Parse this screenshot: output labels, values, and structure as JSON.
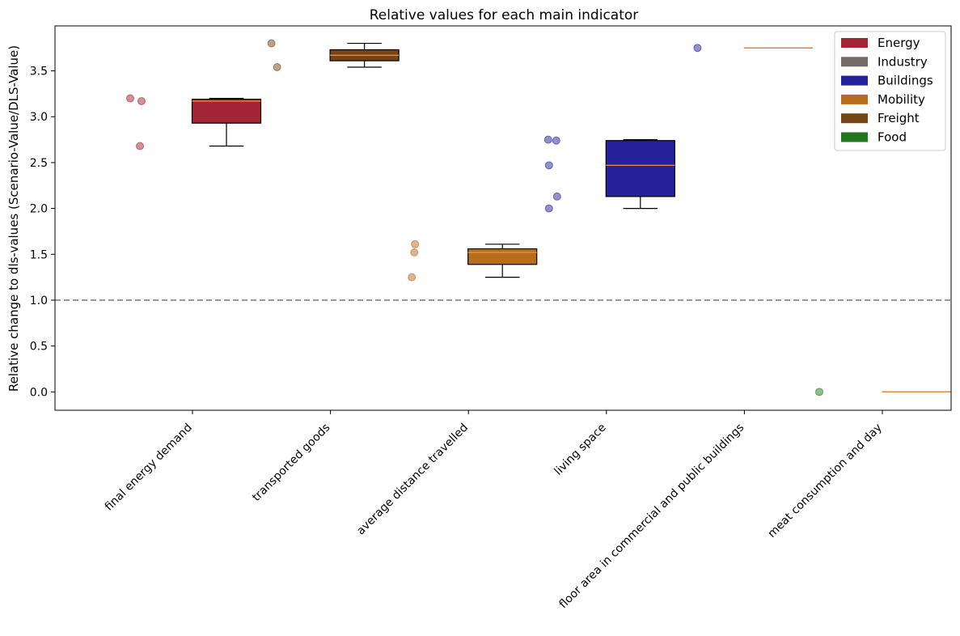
{
  "chart_data": {
    "type": "box",
    "title": "Relative values for each main indicator",
    "ylabel": "Relative change to dls-values (Scenario-Value/DLS-Value)",
    "xlabel": "",
    "ylim": [
      -0.2,
      3.99
    ],
    "yticks": [
      "0.0",
      "0.5",
      "1.0",
      "1.5",
      "2.0",
      "2.5",
      "3.0",
      "3.5"
    ],
    "reference_line": 1.0,
    "legend_position": "top-right",
    "grid": false,
    "legend": [
      {
        "label": "Energy",
        "color": "#a32435"
      },
      {
        "label": "Industry",
        "color": "#756968"
      },
      {
        "label": "Buildings",
        "color": "#27229c"
      },
      {
        "label": "Mobility",
        "color": "#b66d1e"
      },
      {
        "label": "Freight",
        "color": "#744514"
      },
      {
        "label": "Food",
        "color": "#22761d"
      }
    ],
    "categories": [
      {
        "label": "final energy demand",
        "sector": "Energy",
        "points": [
          3.2,
          3.17,
          2.68
        ],
        "box": {
          "whisker_low": 2.68,
          "q1": 2.93,
          "median": 3.17,
          "q3": 3.19,
          "whisker_high": 3.2
        }
      },
      {
        "label": "transported goods",
        "sector": "Freight",
        "points": [
          3.8,
          3.54
        ],
        "box": {
          "whisker_low": 3.54,
          "q1": 3.61,
          "median": 3.67,
          "q3": 3.73,
          "whisker_high": 3.8
        }
      },
      {
        "label": "average distance travelled",
        "sector": "Mobility",
        "points": [
          1.61,
          1.52,
          1.25
        ],
        "box": {
          "whisker_low": 1.25,
          "q1": 1.39,
          "median": 1.52,
          "q3": 1.56,
          "whisker_high": 1.61
        }
      },
      {
        "label": "living space",
        "sector": "Buildings",
        "points": [
          2.75,
          2.74,
          2.47,
          2.13,
          2.0
        ],
        "box": {
          "whisker_low": 2.0,
          "q1": 2.13,
          "median": 2.47,
          "q3": 2.74,
          "whisker_high": 2.75
        }
      },
      {
        "label": "floor area in commercial and public buildings",
        "sector": "Buildings",
        "points": [
          3.75
        ],
        "box": {
          "whisker_low": 3.75,
          "q1": 3.75,
          "median": 3.75,
          "q3": 3.75,
          "whisker_high": 3.75
        }
      },
      {
        "label": "meat consumption  and day",
        "sector": "Food",
        "points": [
          0.0
        ],
        "box": {
          "whisker_low": 0.0,
          "q1": 0.0,
          "median": 0.0,
          "q3": 0.0,
          "whisker_high": 0.0
        }
      }
    ],
    "median_color": "#e8893a",
    "reference_line_color": "#808080"
  }
}
